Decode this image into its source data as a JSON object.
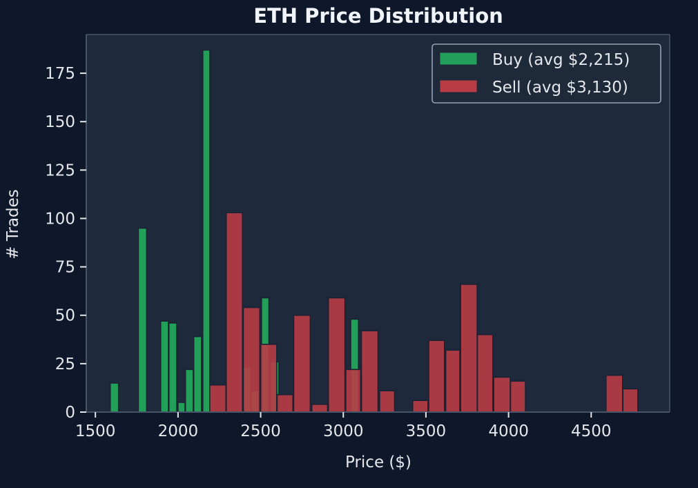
{
  "chart_data": {
    "type": "bar",
    "subtype": "overlaid-histogram",
    "title": "ETH Price Distribution",
    "xlabel": "Price ($)",
    "ylabel": "# Trades",
    "xlim": [
      1445,
      4975
    ],
    "ylim": [
      0,
      195
    ],
    "xticks": [
      1500,
      2000,
      2500,
      3000,
      3500,
      4000,
      4500
    ],
    "xtick_labels": [
      "1500",
      "2000",
      "2500",
      "3000",
      "3500",
      "4000",
      "4500"
    ],
    "yticks": [
      0,
      25,
      50,
      75,
      100,
      125,
      150,
      175
    ],
    "ytick_labels": [
      "0",
      "25",
      "50",
      "75",
      "100",
      "125",
      "150",
      "175"
    ],
    "grid": false,
    "legend_position": "top-right",
    "series": [
      {
        "name": "Buy (avg $2,215)",
        "color": "#22a05a",
        "bins": [
          {
            "x0": 1590,
            "x1": 1640,
            "count": 15
          },
          {
            "x0": 1760,
            "x1": 1810,
            "count": 95
          },
          {
            "x0": 1895,
            "x1": 1942,
            "count": 47
          },
          {
            "x0": 1945,
            "x1": 1992,
            "count": 46
          },
          {
            "x0": 2000,
            "x1": 2042,
            "count": 5
          },
          {
            "x0": 2045,
            "x1": 2092,
            "count": 22
          },
          {
            "x0": 2095,
            "x1": 2142,
            "count": 39
          },
          {
            "x0": 2150,
            "x1": 2192,
            "count": 187
          },
          {
            "x0": 2395,
            "x1": 2440,
            "count": 23
          },
          {
            "x0": 2442,
            "x1": 2490,
            "count": 11
          },
          {
            "x0": 2505,
            "x1": 2550,
            "count": 59
          },
          {
            "x0": 2560,
            "x1": 2610,
            "count": 26
          },
          {
            "x0": 3045,
            "x1": 3092,
            "count": 48
          }
        ]
      },
      {
        "name": "Sell (avg $3,130)",
        "color": "#b83c45",
        "bins": [
          {
            "x0": 2192,
            "x1": 2290,
            "count": 14
          },
          {
            "x0": 2292,
            "x1": 2390,
            "count": 103
          },
          {
            "x0": 2395,
            "x1": 2495,
            "count": 54
          },
          {
            "x0": 2500,
            "x1": 2597,
            "count": 35
          },
          {
            "x0": 2600,
            "x1": 2695,
            "count": 9
          },
          {
            "x0": 2700,
            "x1": 2800,
            "count": 50
          },
          {
            "x0": 2810,
            "x1": 2905,
            "count": 4
          },
          {
            "x0": 2910,
            "x1": 3010,
            "count": 59
          },
          {
            "x0": 3015,
            "x1": 3105,
            "count": 22
          },
          {
            "x0": 3110,
            "x1": 3210,
            "count": 42
          },
          {
            "x0": 3220,
            "x1": 3310,
            "count": 11
          },
          {
            "x0": 3420,
            "x1": 3512,
            "count": 6
          },
          {
            "x0": 3517,
            "x1": 3612,
            "count": 37
          },
          {
            "x0": 3620,
            "x1": 3705,
            "count": 32
          },
          {
            "x0": 3710,
            "x1": 3810,
            "count": 66
          },
          {
            "x0": 3812,
            "x1": 3905,
            "count": 40
          },
          {
            "x0": 3910,
            "x1": 4010,
            "count": 18
          },
          {
            "x0": 4012,
            "x1": 4102,
            "count": 16
          },
          {
            "x0": 4590,
            "x1": 4690,
            "count": 19
          },
          {
            "x0": 4692,
            "x1": 4782,
            "count": 12
          }
        ]
      }
    ]
  },
  "colors": {
    "background": "#0f172a",
    "plot_background": "#1e293b",
    "axis": "#475569",
    "text": "#e5e7eb",
    "buy": "#22a05a",
    "sell": "#b83c45"
  }
}
